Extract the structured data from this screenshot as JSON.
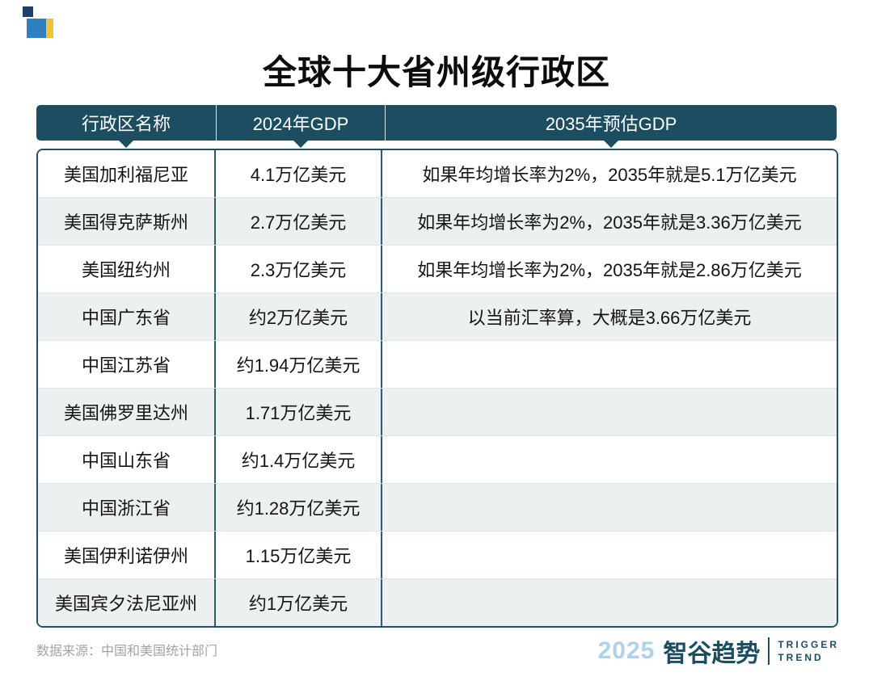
{
  "title": "全球十大省州级行政区",
  "chart_data": {
    "type": "table",
    "title": "全球十大省州级行政区",
    "columns": [
      "行政区名称",
      "2024年GDP",
      "2035年预估GDP"
    ],
    "rows": [
      [
        "美国加利福尼亚",
        "4.1万亿美元",
        "如果年均增长率为2%，2035年就是5.1万亿美元"
      ],
      [
        "美国得克萨斯州",
        "2.7万亿美元",
        "如果年均增长率为2%，2035年就是3.36万亿美元"
      ],
      [
        "美国纽约州",
        "2.3万亿美元",
        "如果年均增长率为2%，2035年就是2.86万亿美元"
      ],
      [
        "中国广东省",
        "约2万亿美元",
        "以当前汇率算，大概是3.66万亿美元"
      ],
      [
        "中国江苏省",
        "约1.94万亿美元",
        ""
      ],
      [
        "美国佛罗里达州",
        "1.71万亿美元",
        ""
      ],
      [
        "中国山东省",
        "约1.4万亿美元",
        ""
      ],
      [
        "中国浙江省",
        "约1.28万亿美元",
        ""
      ],
      [
        "美国伊利诺伊州",
        "1.15万亿美元",
        ""
      ],
      [
        "美国宾夕法尼亚州",
        "约1万亿美元",
        ""
      ]
    ],
    "source": "数据来源：中国和美国统计部门"
  },
  "footer": {
    "source": "数据来源：中国和美国统计部门",
    "brand": {
      "year": "2025",
      "name": "智谷趋势",
      "tagline_line1": "TRIGGER",
      "tagline_line2": "TREND"
    }
  },
  "colors": {
    "header_bg": "#1d4d60",
    "stripe": "#ecf0f1",
    "accent_blue": "#2f7fc1",
    "accent_yellow": "#f0c23c"
  }
}
